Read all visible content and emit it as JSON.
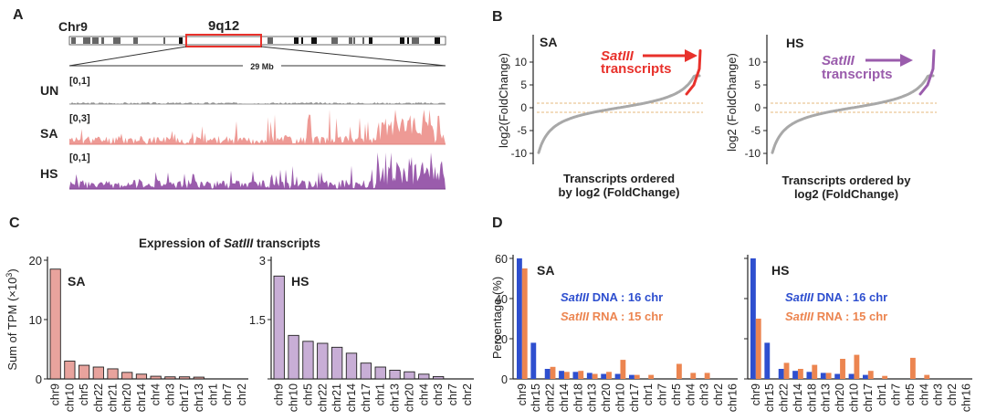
{
  "panels": {
    "A": {
      "label": "A",
      "chromosome": "Chr9",
      "band": "9q12",
      "span_label": "29 Mb",
      "tracks": [
        {
          "name": "UN",
          "range": "[0,1]",
          "color": "#8c8c8c"
        },
        {
          "name": "SA",
          "range": "[0,3]",
          "color": "#ee9a95"
        },
        {
          "name": "HS",
          "range": "[0,1]",
          "color": "#9a5cac"
        }
      ],
      "highlight_color": "#e8312b"
    },
    "B": {
      "label": "B",
      "plots": [
        {
          "condition": "SA",
          "gene_italic": "SatIII",
          "gene_suffix": "transcripts",
          "accent": "#e8312b",
          "ylabel": "log2(FoldChange)",
          "xlabel_line1": "Transcripts ordered",
          "xlabel_line2": "by log2 (FoldChange)",
          "yticks": [
            10,
            5,
            0,
            -5,
            -10
          ],
          "ylim": [
            -12,
            14
          ],
          "threshold_lines": [
            1,
            -1
          ]
        },
        {
          "condition": "HS",
          "gene_italic": "SatIII",
          "gene_suffix": "transcripts",
          "accent": "#9a5cac",
          "ylabel": "log2 (FoldChange)",
          "xlabel_line1": "Transcripts ordered by",
          "xlabel_line2": "log2 (FoldChange)",
          "yticks": [
            10,
            5,
            0,
            -5,
            -10
          ],
          "ylim": [
            -12,
            14
          ],
          "threshold_lines": [
            1,
            -1
          ]
        }
      ]
    },
    "C": {
      "label": "C",
      "title_prefix": "Expression of ",
      "title_italic": "SatIII",
      "title_suffix": " transcripts",
      "ylabel": "Sum of TPM (×10",
      "ylabel_sup": "3",
      "ylabel_close": ")"
    },
    "D": {
      "label": "D",
      "ylabel": "Percentage (%)",
      "legend_dna_italic": "SatIII",
      "legend_dna_rest": " DNA : 16 chr",
      "legend_rna_italic": "SatIII",
      "legend_rna_rest": " RNA : 15 chr",
      "dna_color": "#2e4fcf",
      "rna_color": "#ec8550"
    }
  },
  "chart_data": [
    {
      "type": "bar",
      "panel": "C",
      "title": "Expression of SatIII transcripts",
      "condition": "SA",
      "ylabel": "Sum of TPM (×10^3)",
      "ylim": [
        0,
        20
      ],
      "yticks": [
        0,
        10,
        20
      ],
      "fill": "#e8a39d",
      "categories": [
        "chr9",
        "chr10",
        "chr5",
        "chr22",
        "chr21",
        "chr20",
        "chr14",
        "chr4",
        "chr3",
        "chr17",
        "chr13",
        "chr1",
        "chr7",
        "chr2"
      ],
      "values": [
        18.5,
        3.0,
        2.3,
        2.0,
        1.7,
        1.1,
        0.8,
        0.45,
        0.35,
        0.35,
        0.3,
        0,
        0,
        0
      ]
    },
    {
      "type": "bar",
      "panel": "C",
      "condition": "HS",
      "ylim": [
        0,
        3
      ],
      "yticks": [
        0,
        1.5,
        3
      ],
      "ytick_labels": [
        "",
        "1.5",
        "3"
      ],
      "fill": "#c8aed6",
      "categories": [
        "chr9",
        "chr10",
        "chr5",
        "chr22",
        "chr21",
        "chr14",
        "chr17",
        "chr1",
        "chr13",
        "chr20",
        "chr4",
        "chr3",
        "chr7",
        "chr2"
      ],
      "values": [
        2.6,
        1.1,
        0.95,
        0.9,
        0.8,
        0.65,
        0.4,
        0.3,
        0.22,
        0.18,
        0.12,
        0.06,
        0,
        0
      ]
    },
    {
      "type": "bar",
      "panel": "D",
      "condition": "SA",
      "ylabel": "Percentage (%)",
      "ylim": [
        0,
        60
      ],
      "yticks": [
        0,
        20,
        40,
        60
      ],
      "categories": [
        "chr9",
        "chr15",
        "chr22",
        "chr14",
        "chr18",
        "chr13",
        "chr20",
        "chr10",
        "chr17",
        "chr1",
        "chr7",
        "chr5",
        "chr4",
        "chr3",
        "chr2",
        "chr16"
      ],
      "series": [
        {
          "name": "SatIII DNA",
          "values": [
            60,
            18,
            5,
            4,
            3.5,
            3,
            2.5,
            2.5,
            2,
            0,
            0,
            0,
            0,
            0,
            0,
            0
          ]
        },
        {
          "name": "SatIII RNA",
          "values": [
            55,
            0,
            6,
            3.5,
            4,
            2.5,
            3.5,
            9.5,
            2,
            2,
            0,
            7.5,
            3,
            3,
            0,
            0
          ]
        }
      ]
    },
    {
      "type": "bar",
      "panel": "D",
      "condition": "HS",
      "ylim": [
        0,
        60
      ],
      "yticks": [
        0,
        20,
        40,
        60
      ],
      "categories": [
        "chr9",
        "chr15",
        "chr22",
        "chr14",
        "chr18",
        "chr13",
        "chr20",
        "chr10",
        "chr17",
        "chr1",
        "chr7",
        "chr5",
        "chr4",
        "chr3",
        "chr2",
        "chr16"
      ],
      "series": [
        {
          "name": "SatIII DNA",
          "values": [
            60,
            18,
            5,
            4,
            3.5,
            3,
            2.5,
            2.5,
            2,
            0,
            0,
            0,
            0,
            0,
            0,
            0
          ]
        },
        {
          "name": "SatIII RNA",
          "values": [
            30,
            0,
            8,
            5,
            7,
            3,
            10,
            12,
            4,
            1.5,
            0,
            10.5,
            2,
            0,
            0,
            0
          ]
        }
      ]
    }
  ]
}
